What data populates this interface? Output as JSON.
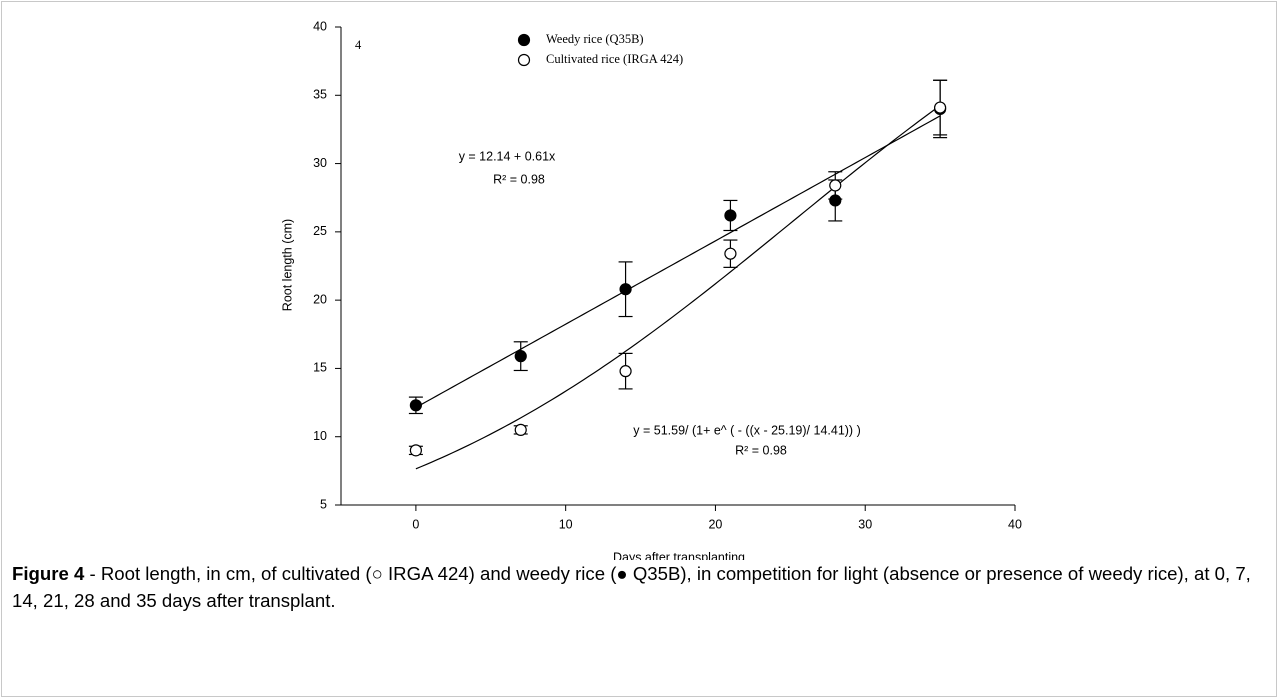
{
  "chart_data": {
    "type": "scatter",
    "annotation": "4",
    "x_label": "Days after transplanting",
    "y_label": "Root length (cm)",
    "x": [
      0,
      7,
      14,
      21,
      28,
      35
    ],
    "xlim": [
      -5,
      40
    ],
    "xticks": [
      0,
      10,
      20,
      30,
      40
    ],
    "ylim": [
      5,
      40
    ],
    "yticks": [
      5,
      10,
      15,
      20,
      25,
      30,
      35,
      40
    ],
    "series": [
      {
        "name": "Weedy rice (Q35B)",
        "color": "#000000",
        "marker": "filled",
        "values": [
          12.3,
          15.9,
          20.8,
          26.2,
          27.3,
          34.0
        ],
        "errors": [
          0.6,
          1.05,
          2.0,
          1.1,
          1.5,
          2.1
        ],
        "fit": {
          "kind": "linear",
          "a": 12.14,
          "b": 0.61
        },
        "equation": "y = 12.14 + 0.61x",
        "r2": "R² = 0.98"
      },
      {
        "name": "Cultivated rice (IRGA 424)",
        "color": "#000000",
        "marker": "open",
        "values": [
          9.0,
          10.5,
          14.8,
          23.4,
          28.4,
          34.1
        ],
        "errors": [
          0.3,
          0.3,
          1.3,
          1.0,
          1.0,
          2.0
        ],
        "fit": {
          "kind": "logistic",
          "a": 51.59,
          "x0": 25.19,
          "b": 14.41
        },
        "equation": "y = 51.59/ (1+ e^ ( - ((x - 25.19)/ 14.41)) )",
        "r2": "R² = 0.98"
      }
    ],
    "caption": {
      "label": "Figure 4",
      "text": " - Root length, in cm, of cultivated (○ IRGA 424) and weedy rice (● Q35B), in competition for light (absence or presence of weedy rice), at 0, 7, 14, 21, 28 and 35 days after transplant."
    }
  }
}
